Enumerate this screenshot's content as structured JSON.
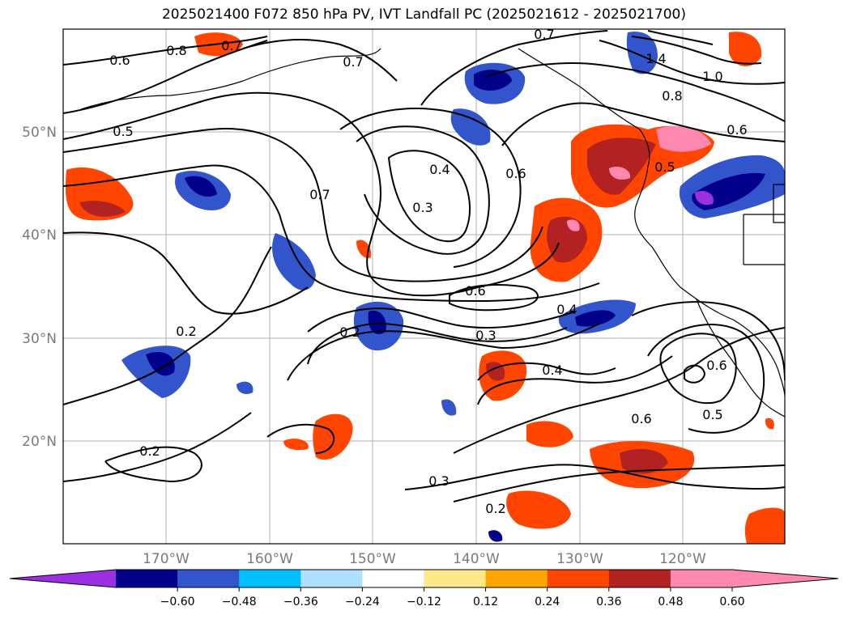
{
  "title": "2025021400 F072 850 hPa PV, IVT Landfall PC (2025021612 - 2025021700)",
  "map": {
    "lat_labels": [
      "50°N",
      "40°N",
      "30°N",
      "20°N"
    ],
    "lon_labels": [
      "170°W",
      "160°W",
      "150°W",
      "140°W",
      "130°W",
      "120°W"
    ],
    "grid": true,
    "contour_labels": [
      "0.8",
      "0.7",
      "0.6",
      "0.7",
      "0.5",
      "0.7",
      "1.4",
      "1.0",
      "0.8",
      "0.6",
      "0.4",
      "0.3",
      "0.6",
      "0.5",
      "0.7",
      "0.6",
      "0.4",
      "0.3",
      "0.2",
      "0.2",
      "0.4",
      "0.6",
      "0.6",
      "0.5",
      "0.2",
      "0.3",
      "0.2"
    ]
  },
  "colorbar": {
    "ticks": [
      "−0.60",
      "−0.48",
      "−0.36",
      "−0.24",
      "−0.12",
      "0.12",
      "0.24",
      "0.36",
      "0.48",
      "0.60"
    ],
    "colors": [
      "#9b30e0",
      "#00008b",
      "#3355cc",
      "#00bfff",
      "#b0e0ff",
      "#ffffff",
      "#ffe88a",
      "#ffa500",
      "#ff4500",
      "#b22222",
      "#ff88b0",
      "#ff88b0"
    ],
    "extend": "both"
  }
}
